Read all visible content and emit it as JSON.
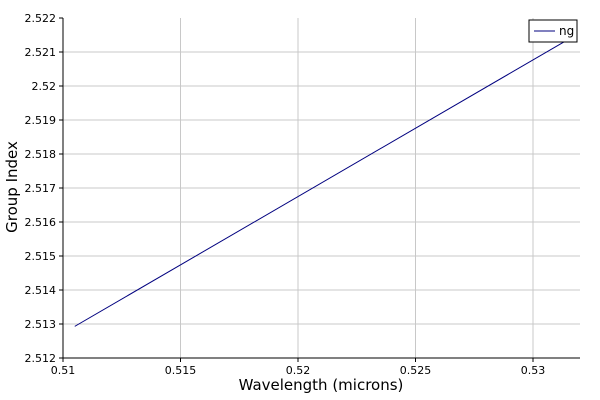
{
  "chart_data": {
    "type": "line",
    "title": "",
    "xlabel": "Wavelength (microns)",
    "ylabel": "Group Index",
    "xlim": [
      0.51,
      0.532
    ],
    "ylim": [
      2.512,
      2.522
    ],
    "x_ticks": [
      "0.51",
      "0.515",
      "0.52",
      "0.525",
      "0.53"
    ],
    "x_tick_values": [
      0.51,
      0.515,
      0.52,
      0.525,
      0.53
    ],
    "y_ticks": [
      "2.512",
      "2.513",
      "2.514",
      "2.515",
      "2.516",
      "2.517",
      "2.518",
      "2.519",
      "2.52",
      "2.521",
      "2.522"
    ],
    "y_tick_values": [
      2.512,
      2.513,
      2.514,
      2.515,
      2.516,
      2.517,
      2.518,
      2.519,
      2.52,
      2.521,
      2.522
    ],
    "grid": true,
    "legend_position": "top-right",
    "series": [
      {
        "name": "ng",
        "color": "#00007f",
        "x": [
          0.5105,
          0.5315
        ],
        "y": [
          2.51293,
          2.52137
        ]
      }
    ]
  }
}
